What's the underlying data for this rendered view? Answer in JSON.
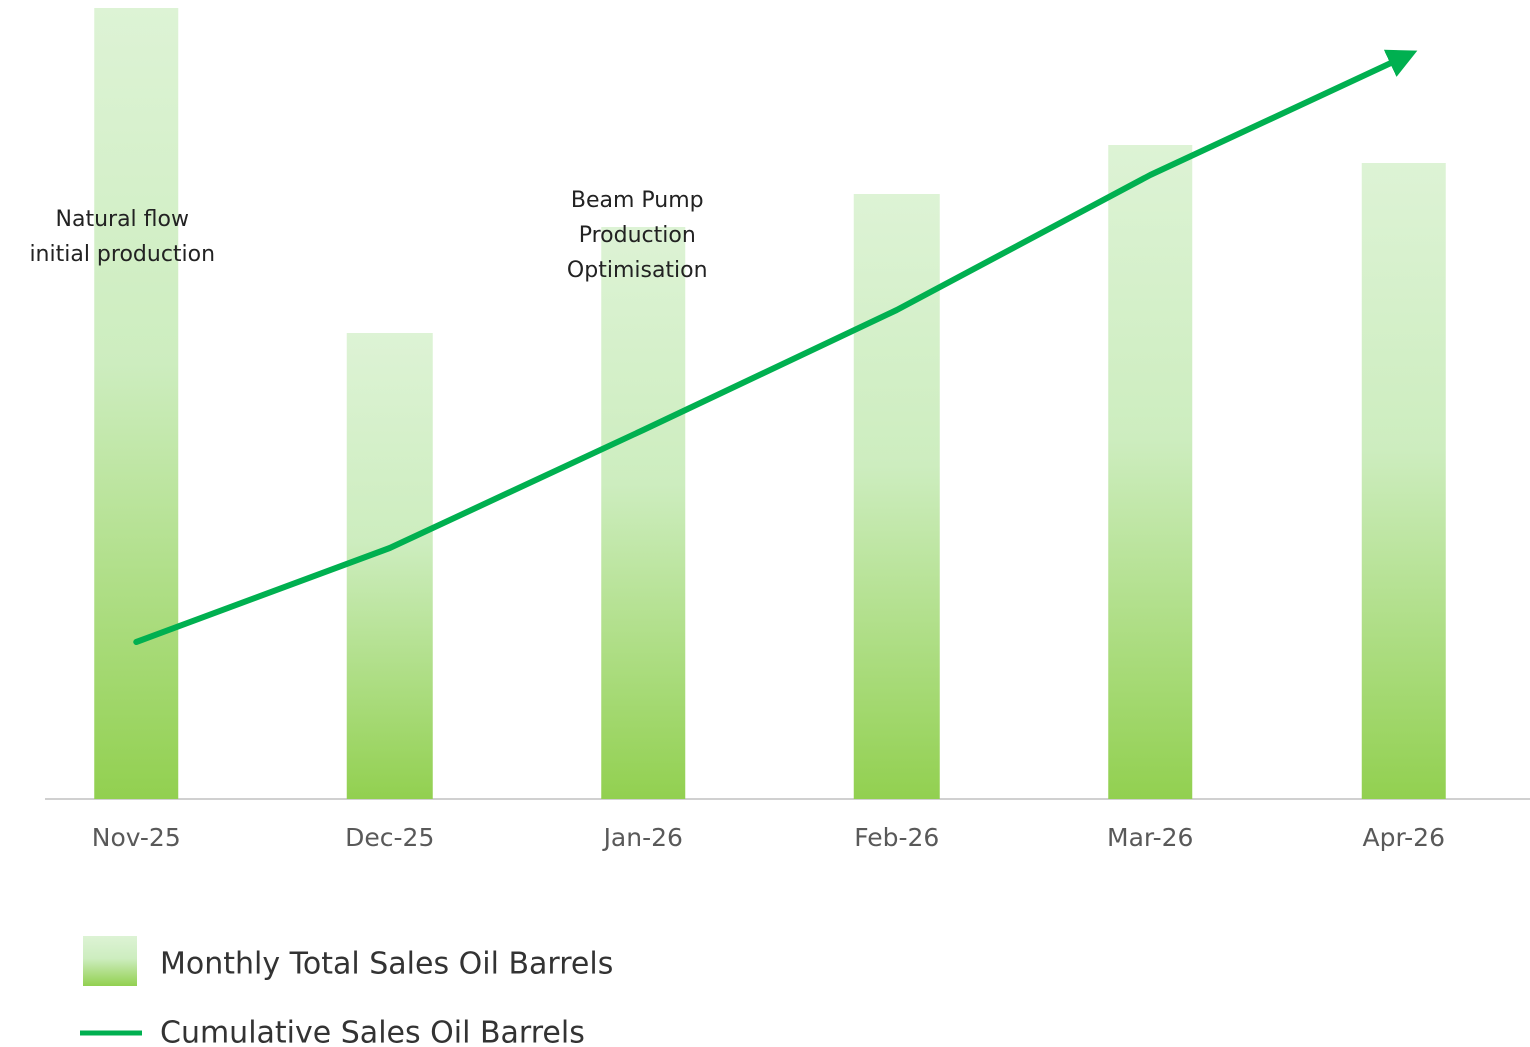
{
  "chart_data": {
    "type": "bar_line",
    "categories": [
      "Nov-25",
      "Dec-25",
      "Jan-26",
      "Feb-26",
      "Mar-26",
      "Apr-26"
    ],
    "series": [
      {
        "name": "Monthly Total Sales Oil Barrels",
        "type": "bar",
        "color": "#92d050",
        "values": [
          791,
          466,
          572,
          605,
          654,
          636
        ]
      },
      {
        "name": "Cumulative Sales Oil Barrels",
        "type": "line",
        "color": "#00b050",
        "values": [
          157,
          251,
          369,
          489,
          624,
          742
        ]
      }
    ],
    "ylim": [
      0,
      800
    ],
    "annotations": [
      {
        "category": 0,
        "lines": [
          "Natural flow",
          "initial production"
        ]
      },
      {
        "category": 2,
        "lines": [
          "Beam Pump",
          "Production",
          "Optimisation"
        ]
      }
    ]
  }
}
